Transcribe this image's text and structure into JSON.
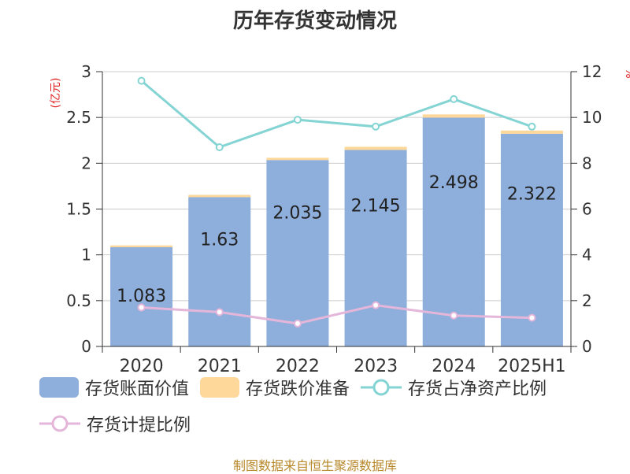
{
  "title": "历年存货变动情况",
  "source": "制图数据来自恒生聚源数据库",
  "left_unit": "(亿元)",
  "right_unit": "%",
  "legend": [
    {
      "label": "存货账面价值",
      "kind": "box",
      "color": "#8eaedb"
    },
    {
      "label": "存货跌价准备",
      "kind": "box",
      "color": "#fdd89a"
    },
    {
      "label": "存货占净资产比例",
      "kind": "line",
      "color": "#85d4d4"
    },
    {
      "label": "存货计提比例",
      "kind": "line",
      "color": "#e4b6d9"
    }
  ],
  "chart_data": {
    "type": "bar",
    "categories": [
      "2020",
      "2021",
      "2022",
      "2023",
      "2024",
      "2025H1"
    ],
    "series": [
      {
        "name": "存货账面价值",
        "type": "bar",
        "axis": "left",
        "color": "#8eaedb",
        "values": [
          1.083,
          1.63,
          2.035,
          2.145,
          2.498,
          2.322
        ],
        "labels": [
          "1.083",
          "1.63",
          "2.035",
          "2.145",
          "2.498",
          "2.322"
        ]
      },
      {
        "name": "存货跌价准备",
        "type": "bar-stacked",
        "axis": "left",
        "color": "#fdd89a",
        "values": [
          0.02,
          0.025,
          0.025,
          0.035,
          0.035,
          0.035
        ]
      },
      {
        "name": "存货占净资产比例",
        "type": "line",
        "axis": "right",
        "color": "#85d4d4",
        "values": [
          11.6,
          8.7,
          9.9,
          9.6,
          10.8,
          9.6
        ]
      },
      {
        "name": "存货计提比例",
        "type": "line",
        "axis": "right",
        "color": "#e4b6d9",
        "values": [
          1.7,
          1.5,
          1.0,
          1.8,
          1.35,
          1.25
        ]
      }
    ],
    "y_left": {
      "min": 0,
      "max": 3,
      "ticks": [
        "0",
        "0.5",
        "1",
        "1.5",
        "2",
        "2.5",
        "3"
      ]
    },
    "y_right": {
      "min": 0,
      "max": 12,
      "ticks": [
        "0",
        "2",
        "4",
        "6",
        "8",
        "10",
        "12"
      ]
    },
    "grid": true,
    "legend_position": "bottom"
  }
}
